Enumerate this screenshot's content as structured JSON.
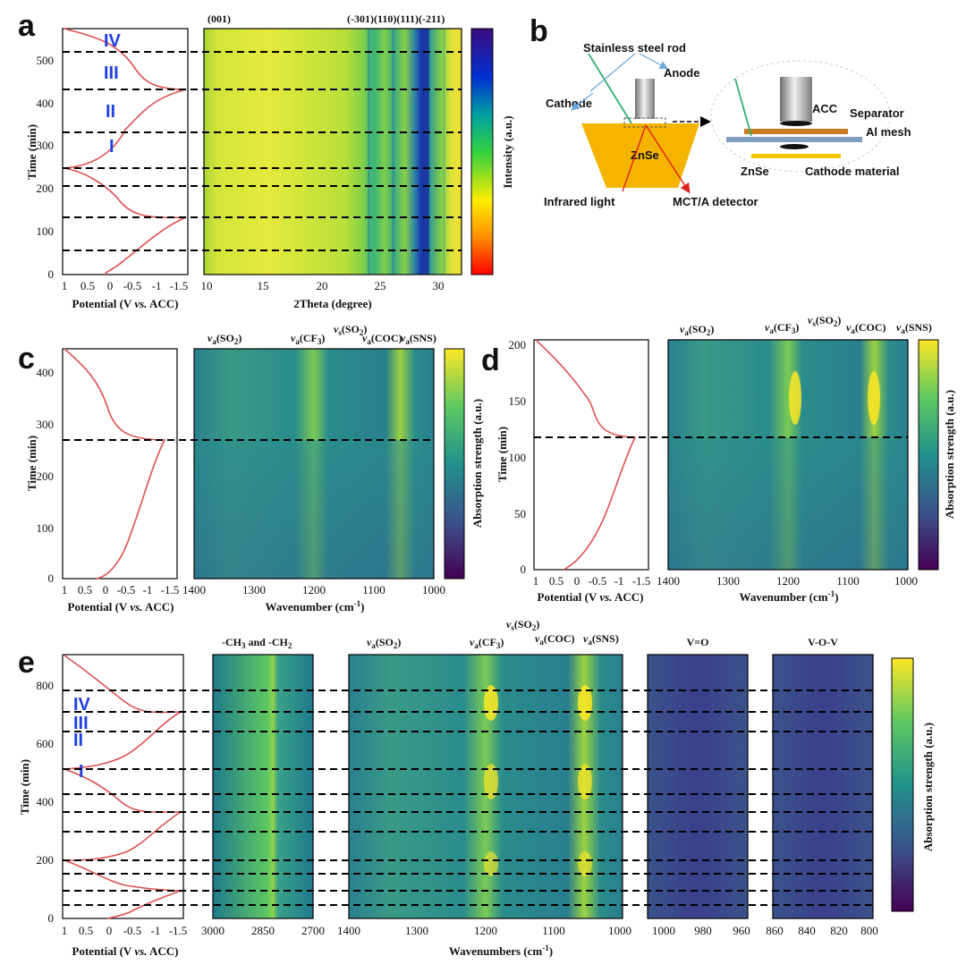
{
  "figure": {
    "panel_letters": [
      "a",
      "b",
      "c",
      "d",
      "e"
    ]
  },
  "colors": {
    "curve": "#e05050",
    "roman": "#2040e0",
    "crystal": "#f5b400",
    "separator": "#c77a20",
    "mesh": "#7f9fc0",
    "cathode_material": "#f5c400",
    "blue_arrow": "#6aa8e0",
    "red_arrow": "#e02020",
    "green_arrow": "#30b070"
  },
  "panel_a": {
    "voltage_axis": {
      "label_prefix": "Potential (V ",
      "label_italic": "vs.",
      "label_suffix": " ACC)",
      "ticks": [
        "1",
        "0.5",
        "0",
        "-0.5",
        "-1",
        "-1.5"
      ]
    },
    "time_axis": {
      "label": "Time (min)",
      "ticks": [
        "0",
        "100",
        "200",
        "300",
        "400",
        "500"
      ]
    },
    "stage_labels": [
      "IV",
      "III",
      "II",
      "I"
    ],
    "theta_axis": {
      "label": "2Theta (degree)",
      "ticks": [
        "10",
        "15",
        "20",
        "25",
        "30"
      ]
    },
    "peak_labels": [
      "(001)",
      "(-301)(110)(111)(-211)"
    ],
    "colorbar_label": "Intensity (a.u.)"
  },
  "panel_b": {
    "labels": {
      "rod": "Stainless steel rod",
      "anode": "Anode",
      "cathode": "Cathode",
      "znse": "ZnSe",
      "infrared": "Infrared light",
      "detector": "MCT/A detector",
      "acc": "ACC",
      "separator": "Separator",
      "mesh": "Al mesh",
      "znse2": "ZnSe",
      "cathode_material": "Cathode material"
    }
  },
  "panel_c": {
    "voltage_ticks": [
      "1",
      "0.5",
      "0",
      "-0.5",
      "-1",
      "-1.5"
    ],
    "voltage_label_prefix": "Potential (V ",
    "voltage_label_italic": "vs.",
    "voltage_label_suffix": " ACC)",
    "time_label": "Time (min)",
    "time_ticks": [
      "0",
      "100",
      "200",
      "300",
      "400"
    ],
    "wn_ticks": [
      "1400",
      "1300",
      "1200",
      "1100",
      "1000"
    ],
    "wn_label": "Wavenumber (cm",
    "colorbar_label": "Absorption strength (a.u.)",
    "peaks": [
      "SO",
      "CF",
      "SO",
      "COC",
      "SNS"
    ]
  },
  "panel_d": {
    "voltage_ticks": [
      "1",
      "0.5",
      "0",
      "-0.5",
      "-1",
      "-1.5"
    ],
    "time_label": "Time (min)",
    "time_ticks": [
      "0",
      "50",
      "100",
      "150",
      "200"
    ],
    "wn_ticks": [
      "1400",
      "1300",
      "1200",
      "1100",
      "1000"
    ],
    "wn_label": "Wavenumber (cm",
    "colorbar_label": "Absorption strength (a.u.)"
  },
  "panel_e": {
    "voltage_ticks": [
      "1",
      "0.5",
      "0",
      "-0.5",
      "-1",
      "-1.5"
    ],
    "time_label": "Time (min)",
    "time_ticks": [
      "0",
      "200",
      "400",
      "600",
      "800"
    ],
    "stage_labels": [
      "IV",
      "III",
      "II",
      "I"
    ],
    "ch_title": "-CH",
    "ch_ticks": [
      "3000",
      "2850",
      "2700"
    ],
    "main_ticks": [
      "1400",
      "1300",
      "1200",
      "1100",
      "1000"
    ],
    "vo_title": "V=O",
    "vo_ticks": [
      "1000",
      "980",
      "960"
    ],
    "vov_title": "V-O-V",
    "vov_ticks": [
      "860",
      "840",
      "820",
      "800"
    ],
    "wn_label": "Wavenumbers (cm",
    "colorbar_label": "Absorption strength (a.u.)"
  }
}
